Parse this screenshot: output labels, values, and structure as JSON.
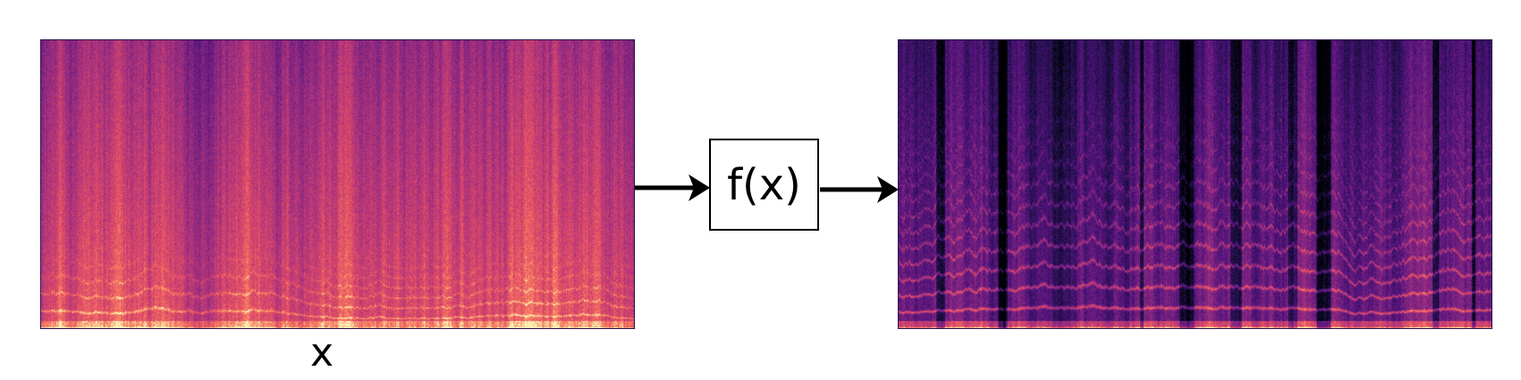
{
  "diagram": {
    "input_label": "x",
    "function_label": "f(x)"
  },
  "colors": {
    "arrow": "#000000",
    "input_colormap": "magma-bright",
    "output_colormap": "magma-dark"
  },
  "nodes": [
    {
      "id": "input-spectrogram",
      "kind": "spectrogram-image"
    },
    {
      "id": "function-box",
      "kind": "box",
      "label": "f(x)"
    },
    {
      "id": "output-spectrogram",
      "kind": "spectrogram-image"
    }
  ],
  "edges": [
    {
      "from": "input-spectrogram",
      "to": "function-box"
    },
    {
      "from": "function-box",
      "to": "output-spectrogram"
    }
  ]
}
